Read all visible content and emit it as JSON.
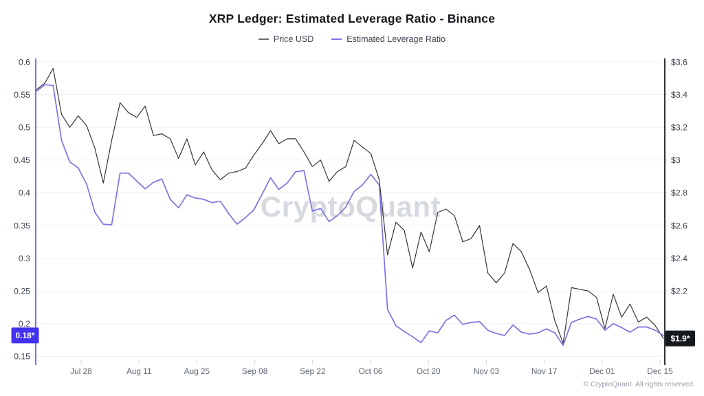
{
  "title": "XRP Ledger: Estimated Leverage Ratio - Binance",
  "watermark": "CryptoQuant",
  "footer": "© CryptoQuant. All rights reserved",
  "legend": [
    {
      "label": "Price USD",
      "color": "#6e6e6e"
    },
    {
      "label": "Estimated Leverage Ratio",
      "color": "#7e72e4"
    }
  ],
  "left_axis": {
    "tick_labels": [
      "0.6",
      "0.55",
      "0.5",
      "0.45",
      "0.4",
      "0.35",
      "0.3",
      "0.25",
      "0.2",
      "0.15"
    ],
    "tick_values": [
      0.6,
      0.55,
      0.5,
      0.45,
      0.4,
      0.35,
      0.3,
      0.25,
      0.2,
      0.15
    ],
    "range": [
      0.15,
      0.6
    ],
    "axis_color": "#7e72e4",
    "last_value_badge": {
      "text": "0.18*",
      "value": 0.182,
      "bg": "#4331f0"
    }
  },
  "right_axis": {
    "tick_labels": [
      "$3.6",
      "$3.4",
      "$3.2",
      "$3",
      "$2.8",
      "$2.6",
      "$2.4",
      "$2.2"
    ],
    "tick_values": [
      3.6,
      3.4,
      3.2,
      3.0,
      2.8,
      2.6,
      2.4,
      2.2
    ],
    "range": [
      1.8,
      3.6
    ],
    "axis_color": "#2f3237",
    "last_value_badge": {
      "text": "$1.9*",
      "value": 1.91,
      "bg": "#16191e"
    }
  },
  "x_axis": {
    "tick_labels": [
      "Jul 28",
      "Aug 11",
      "Aug 25",
      "Sep 08",
      "Sep 22",
      "Oct 06",
      "Oct 20",
      "Nov 03",
      "Nov 17",
      "Dec 01",
      "Dec 15"
    ],
    "visible_span": "Jul 17 - Dec 15"
  },
  "chart_data": {
    "type": "line",
    "title": "XRP Ledger: Estimated Leverage Ratio - Binance",
    "x_description": "Daily data sampled ~every 2 days from ~Jul 17 to Dec 15",
    "x_tick_labels": [
      "Jul 28",
      "Aug 11",
      "Aug 25",
      "Sep 08",
      "Sep 22",
      "Oct 06",
      "Oct 20",
      "Nov 03",
      "Nov 17",
      "Dec 01",
      "Dec 15"
    ],
    "grid": "horizontal-faint",
    "legend_position": "top-center",
    "series": [
      {
        "name": "Price USD",
        "axis": "right",
        "color": "#343434",
        "ylim": [
          1.8,
          3.6
        ],
        "values": [
          3.43,
          3.47,
          3.56,
          3.28,
          3.2,
          3.27,
          3.21,
          3.07,
          2.86,
          3.12,
          3.35,
          3.29,
          3.26,
          3.33,
          3.15,
          3.16,
          3.13,
          3.01,
          3.13,
          2.97,
          3.05,
          2.94,
          2.88,
          2.92,
          2.93,
          2.95,
          3.03,
          3.1,
          3.18,
          3.1,
          3.13,
          3.13,
          3.05,
          2.96,
          3.0,
          2.87,
          2.93,
          2.96,
          3.12,
          3.08,
          3.04,
          2.88,
          2.42,
          2.62,
          2.57,
          2.34,
          2.56,
          2.44,
          2.68,
          2.7,
          2.66,
          2.5,
          2.52,
          2.6,
          2.31,
          2.25,
          2.31,
          2.49,
          2.44,
          2.33,
          2.19,
          2.23,
          2.02,
          1.88,
          2.22,
          2.21,
          2.2,
          2.16,
          1.97,
          2.18,
          2.04,
          2.12,
          2.01,
          2.04,
          1.99,
          1.91
        ]
      },
      {
        "name": "Estimated Leverage Ratio",
        "axis": "left",
        "color": "#7e72e4",
        "ylim": [
          0.15,
          0.6
        ],
        "values": [
          0.555,
          0.565,
          0.564,
          0.48,
          0.447,
          0.438,
          0.413,
          0.37,
          0.352,
          0.351,
          0.43,
          0.43,
          0.418,
          0.406,
          0.416,
          0.421,
          0.39,
          0.377,
          0.397,
          0.392,
          0.39,
          0.385,
          0.387,
          0.368,
          0.352,
          0.362,
          0.374,
          0.398,
          0.423,
          0.405,
          0.415,
          0.432,
          0.434,
          0.372,
          0.376,
          0.356,
          0.365,
          0.378,
          0.402,
          0.412,
          0.428,
          0.412,
          0.222,
          0.197,
          0.188,
          0.18,
          0.171,
          0.189,
          0.186,
          0.205,
          0.213,
          0.199,
          0.202,
          0.203,
          0.19,
          0.185,
          0.182,
          0.198,
          0.187,
          0.184,
          0.186,
          0.192,
          0.186,
          0.167,
          0.202,
          0.207,
          0.211,
          0.207,
          0.19,
          0.2,
          0.194,
          0.187,
          0.195,
          0.195,
          0.19,
          0.182
        ]
      }
    ]
  }
}
